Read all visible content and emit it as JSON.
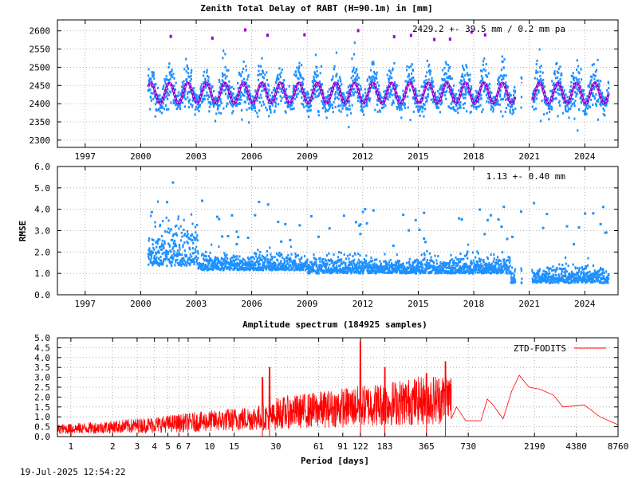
{
  "chart_data": [
    {
      "type": "scatter",
      "title": "Zenith Total Delay of RABT (H=90.1m) in [mm]",
      "annotation": "2429.2 +-  39.5 mm /  0.2 mm pa",
      "xlabel": "",
      "ylabel": "",
      "xlim": [
        1995.5,
        2025.8
      ],
      "ylim": [
        2280,
        2630
      ],
      "x_ticks": [
        "1997",
        "2000",
        "2003",
        "2006",
        "2009",
        "2012",
        "2015",
        "2018",
        "2021",
        "2024"
      ],
      "y_ticks": [
        "2300",
        "2350",
        "2400",
        "2450",
        "2500",
        "2550",
        "2600"
      ],
      "grid": true,
      "data_start": 2000.4,
      "data_end": 2025.3,
      "gaps": [
        [
          2020.25,
          2020.55
        ],
        [
          2020.6,
          2021.15
        ]
      ],
      "mean": 2429.2,
      "seasonal_amplitude": 28,
      "series": [
        {
          "name": "",
          "color": "#1e90ff",
          "kind": "points"
        },
        {
          "name": "",
          "color": "#9400d3",
          "kind": "model"
        }
      ]
    },
    {
      "type": "scatter",
      "title": "",
      "annotation": "1.13 +-  0.40 mm",
      "xlabel": "",
      "ylabel": "RMSE",
      "xlim": [
        1995.5,
        2025.8
      ],
      "ylim": [
        0,
        6
      ],
      "x_ticks": [
        "1997",
        "2000",
        "2003",
        "2006",
        "2009",
        "2012",
        "2015",
        "2018",
        "2021",
        "2024"
      ],
      "y_ticks": [
        "0.0",
        "1.0",
        "2.0",
        "3.0",
        "4.0",
        "5.0",
        "6.0"
      ],
      "grid": true,
      "mean": 1.13,
      "std": 0.4,
      "series": [
        {
          "name": "",
          "color": "#1e90ff",
          "kind": "points"
        }
      ]
    },
    {
      "type": "line",
      "title": "Amplitude spectrum (184925 samples)",
      "xlabel": "Period [days]",
      "ylabel": "",
      "x_scale": "log",
      "xlim": [
        0.8,
        8760
      ],
      "ylim": [
        0,
        5
      ],
      "x_ticks": [
        "1",
        "2",
        "3",
        "4",
        "5",
        "6",
        "7",
        "10",
        "15",
        "30",
        "61",
        "91",
        "122",
        "183",
        "365",
        "730",
        "2190",
        "4380",
        "8760"
      ],
      "y_ticks": [
        "0.0",
        "0.5",
        "1.0",
        "1.5",
        "2.0",
        "2.5",
        "3.0",
        "3.5",
        "4.0",
        "4.5",
        "5.0"
      ],
      "grid": true,
      "legend_position": "top-right",
      "series": [
        {
          "name": "ZTD-FODITS",
          "color": "#ff0000",
          "peaks": [
            {
              "x": 1,
              "y": 0.6
            },
            {
              "x": 24,
              "y": 3.0
            },
            {
              "x": 27,
              "y": 3.5
            },
            {
              "x": 122,
              "y": 4.8
            },
            {
              "x": 183,
              "y": 3.5
            },
            {
              "x": 365,
              "y": 3.2
            },
            {
              "x": 500,
              "y": 3.8
            }
          ],
          "tail": [
            [
              550,
              0.9
            ],
            [
              600,
              1.5
            ],
            [
              700,
              0.8
            ],
            [
              900,
              0.8
            ],
            [
              1000,
              1.9
            ],
            [
              1100,
              1.6
            ],
            [
              1300,
              0.9
            ],
            [
              1500,
              2.3
            ],
            [
              1700,
              3.1
            ],
            [
              2000,
              2.5
            ],
            [
              2400,
              2.4
            ],
            [
              3000,
              2.1
            ],
            [
              3500,
              1.5
            ],
            [
              5000,
              1.6
            ],
            [
              6500,
              1.0
            ],
            [
              8760,
              0.6
            ]
          ]
        }
      ]
    }
  ],
  "timestamp": "19-Jul-2025 12:54:22"
}
